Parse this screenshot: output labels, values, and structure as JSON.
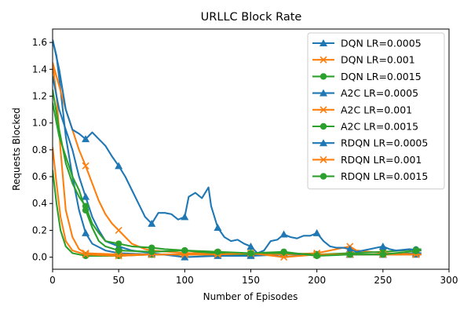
{
  "chart_data": {
    "type": "line",
    "title": "URLLC Block Rate",
    "xlabel": "Number of Episodes",
    "ylabel": "Requests Blocked",
    "xlim": [
      0,
      300
    ],
    "ylim": [
      -0.09,
      1.7
    ],
    "xticks": [
      0,
      50,
      100,
      150,
      200,
      250,
      300
    ],
    "yticks": [
      0.0,
      0.2,
      0.4,
      0.6,
      0.8,
      1.0,
      1.2,
      1.4,
      1.6
    ],
    "grid": false,
    "legend_position": "top-right",
    "series": [
      {
        "name": "DQN LR=0.0005",
        "color": "#1f77b4",
        "marker": "triangle",
        "points": [
          [
            0,
            1.62
          ],
          [
            3,
            1.5
          ],
          [
            6,
            1.25
          ],
          [
            10,
            0.9
          ],
          [
            15,
            0.6
          ],
          [
            20,
            0.35
          ],
          [
            25,
            0.18
          ],
          [
            30,
            0.1
          ],
          [
            40,
            0.05
          ],
          [
            50,
            0.03
          ],
          [
            75,
            0.02
          ],
          [
            100,
            0.02
          ],
          [
            125,
            0.02
          ],
          [
            150,
            0.02
          ],
          [
            175,
            0.03
          ],
          [
            200,
            0.02
          ],
          [
            225,
            0.02
          ],
          [
            250,
            0.02
          ],
          [
            279,
            0.02
          ]
        ]
      },
      {
        "name": "DQN LR=0.001",
        "color": "#ff7f0e",
        "marker": "x",
        "points": [
          [
            0,
            1.45
          ],
          [
            3,
            1.2
          ],
          [
            6,
            0.8
          ],
          [
            10,
            0.35
          ],
          [
            15,
            0.15
          ],
          [
            20,
            0.06
          ],
          [
            25,
            0.03
          ],
          [
            50,
            0.02
          ],
          [
            75,
            0.02
          ],
          [
            100,
            0.02
          ],
          [
            125,
            0.02
          ],
          [
            150,
            0.02
          ],
          [
            175,
            0.02
          ],
          [
            200,
            0.02
          ],
          [
            225,
            0.02
          ],
          [
            250,
            0.02
          ],
          [
            279,
            0.02
          ]
        ]
      },
      {
        "name": "DQN LR=0.0015",
        "color": "#2ca02c",
        "marker": "circle",
        "points": [
          [
            0,
            0.65
          ],
          [
            3,
            0.4
          ],
          [
            6,
            0.2
          ],
          [
            10,
            0.08
          ],
          [
            15,
            0.03
          ],
          [
            25,
            0.01
          ],
          [
            50,
            0.01
          ],
          [
            75,
            0.02
          ],
          [
            100,
            0.02
          ],
          [
            125,
            0.02
          ],
          [
            150,
            0.02
          ],
          [
            175,
            0.02
          ],
          [
            200,
            0.02
          ],
          [
            225,
            0.02
          ],
          [
            250,
            0.02
          ],
          [
            279,
            0.03
          ]
        ]
      },
      {
        "name": "A2C LR=0.0005",
        "color": "#1f77b4",
        "marker": "triangle",
        "points": [
          [
            0,
            1.35
          ],
          [
            5,
            1.1
          ],
          [
            10,
            0.95
          ],
          [
            15,
            0.8
          ],
          [
            20,
            0.6
          ],
          [
            25,
            0.45
          ],
          [
            30,
            0.3
          ],
          [
            35,
            0.2
          ],
          [
            40,
            0.12
          ],
          [
            50,
            0.08
          ],
          [
            60,
            0.05
          ],
          [
            75,
            0.03
          ],
          [
            100,
            0.0
          ],
          [
            125,
            0.01
          ],
          [
            150,
            0.01
          ],
          [
            175,
            0.02
          ],
          [
            200,
            0.02
          ],
          [
            225,
            0.02
          ],
          [
            250,
            0.02
          ],
          [
            279,
            0.03
          ]
        ]
      },
      {
        "name": "A2C LR=0.001",
        "color": "#ff7f0e",
        "marker": "x",
        "points": [
          [
            0,
            1.45
          ],
          [
            10,
            1.1
          ],
          [
            20,
            0.8
          ],
          [
            25,
            0.68
          ],
          [
            30,
            0.55
          ],
          [
            35,
            0.42
          ],
          [
            40,
            0.32
          ],
          [
            45,
            0.25
          ],
          [
            50,
            0.2
          ],
          [
            55,
            0.15
          ],
          [
            60,
            0.1
          ],
          [
            70,
            0.06
          ],
          [
            75,
            0.05
          ],
          [
            100,
            0.03
          ],
          [
            125,
            0.03
          ],
          [
            150,
            0.03
          ],
          [
            175,
            0.02
          ],
          [
            200,
            0.03
          ],
          [
            225,
            0.08
          ],
          [
            230,
            0.05
          ],
          [
            250,
            0.03
          ],
          [
            279,
            0.02
          ]
        ]
      },
      {
        "name": "A2C LR=0.0015",
        "color": "#2ca02c",
        "marker": "circle",
        "points": [
          [
            0,
            1.25
          ],
          [
            5,
            0.95
          ],
          [
            10,
            0.7
          ],
          [
            15,
            0.55
          ],
          [
            20,
            0.45
          ],
          [
            25,
            0.38
          ],
          [
            30,
            0.25
          ],
          [
            35,
            0.18
          ],
          [
            40,
            0.12
          ],
          [
            50,
            0.1
          ],
          [
            60,
            0.08
          ],
          [
            75,
            0.07
          ],
          [
            85,
            0.06
          ],
          [
            100,
            0.05
          ],
          [
            110,
            0.04
          ],
          [
            125,
            0.03
          ],
          [
            150,
            0.03
          ],
          [
            175,
            0.03
          ],
          [
            200,
            0.02
          ],
          [
            225,
            0.03
          ],
          [
            250,
            0.04
          ],
          [
            265,
            0.05
          ],
          [
            279,
            0.06
          ]
        ]
      },
      {
        "name": "RDQN LR=0.0005",
        "color": "#1f77b4",
        "marker": "triangle",
        "points": [
          [
            0,
            1.62
          ],
          [
            5,
            1.4
          ],
          [
            10,
            1.1
          ],
          [
            15,
            0.95
          ],
          [
            20,
            0.92
          ],
          [
            25,
            0.88
          ],
          [
            30,
            0.93
          ],
          [
            35,
            0.88
          ],
          [
            40,
            0.83
          ],
          [
            45,
            0.75
          ],
          [
            50,
            0.68
          ],
          [
            55,
            0.6
          ],
          [
            60,
            0.5
          ],
          [
            65,
            0.4
          ],
          [
            70,
            0.3
          ],
          [
            75,
            0.25
          ],
          [
            80,
            0.33
          ],
          [
            85,
            0.33
          ],
          [
            90,
            0.32
          ],
          [
            95,
            0.28
          ],
          [
            100,
            0.3
          ],
          [
            103,
            0.45
          ],
          [
            108,
            0.48
          ],
          [
            113,
            0.44
          ],
          [
            118,
            0.52
          ],
          [
            120,
            0.38
          ],
          [
            125,
            0.22
          ],
          [
            130,
            0.15
          ],
          [
            135,
            0.12
          ],
          [
            140,
            0.13
          ],
          [
            145,
            0.1
          ],
          [
            150,
            0.08
          ],
          [
            155,
            0.03
          ],
          [
            160,
            0.05
          ],
          [
            165,
            0.12
          ],
          [
            170,
            0.13
          ],
          [
            175,
            0.17
          ],
          [
            180,
            0.15
          ],
          [
            185,
            0.14
          ],
          [
            190,
            0.16
          ],
          [
            195,
            0.16
          ],
          [
            200,
            0.18
          ],
          [
            205,
            0.12
          ],
          [
            210,
            0.08
          ],
          [
            215,
            0.07
          ],
          [
            220,
            0.07
          ],
          [
            225,
            0.06
          ],
          [
            230,
            0.04
          ],
          [
            240,
            0.06
          ],
          [
            250,
            0.08
          ],
          [
            255,
            0.06
          ],
          [
            260,
            0.05
          ],
          [
            270,
            0.06
          ],
          [
            279,
            0.05
          ]
        ]
      },
      {
        "name": "RDQN LR=0.001",
        "color": "#ff7f0e",
        "marker": "x",
        "points": [
          [
            0,
            0.82
          ],
          [
            3,
            0.55
          ],
          [
            6,
            0.3
          ],
          [
            10,
            0.12
          ],
          [
            15,
            0.05
          ],
          [
            25,
            0.02
          ],
          [
            50,
            0.01
          ],
          [
            75,
            0.02
          ],
          [
            100,
            0.02
          ],
          [
            125,
            0.02
          ],
          [
            150,
            0.03
          ],
          [
            175,
            0.0
          ],
          [
            200,
            0.02
          ],
          [
            225,
            0.02
          ],
          [
            250,
            0.02
          ],
          [
            279,
            0.02
          ]
        ]
      },
      {
        "name": "RDQN LR=0.0015",
        "color": "#2ca02c",
        "marker": "circle",
        "points": [
          [
            0,
            1.15
          ],
          [
            5,
            0.9
          ],
          [
            10,
            0.75
          ],
          [
            15,
            0.6
          ],
          [
            20,
            0.5
          ],
          [
            25,
            0.35
          ],
          [
            30,
            0.22
          ],
          [
            35,
            0.12
          ],
          [
            40,
            0.08
          ],
          [
            50,
            0.05
          ],
          [
            75,
            0.04
          ],
          [
            100,
            0.05
          ],
          [
            125,
            0.04
          ],
          [
            150,
            0.03
          ],
          [
            175,
            0.04
          ],
          [
            200,
            0.01
          ],
          [
            225,
            0.02
          ],
          [
            250,
            0.02
          ],
          [
            279,
            0.05
          ]
        ]
      }
    ]
  }
}
